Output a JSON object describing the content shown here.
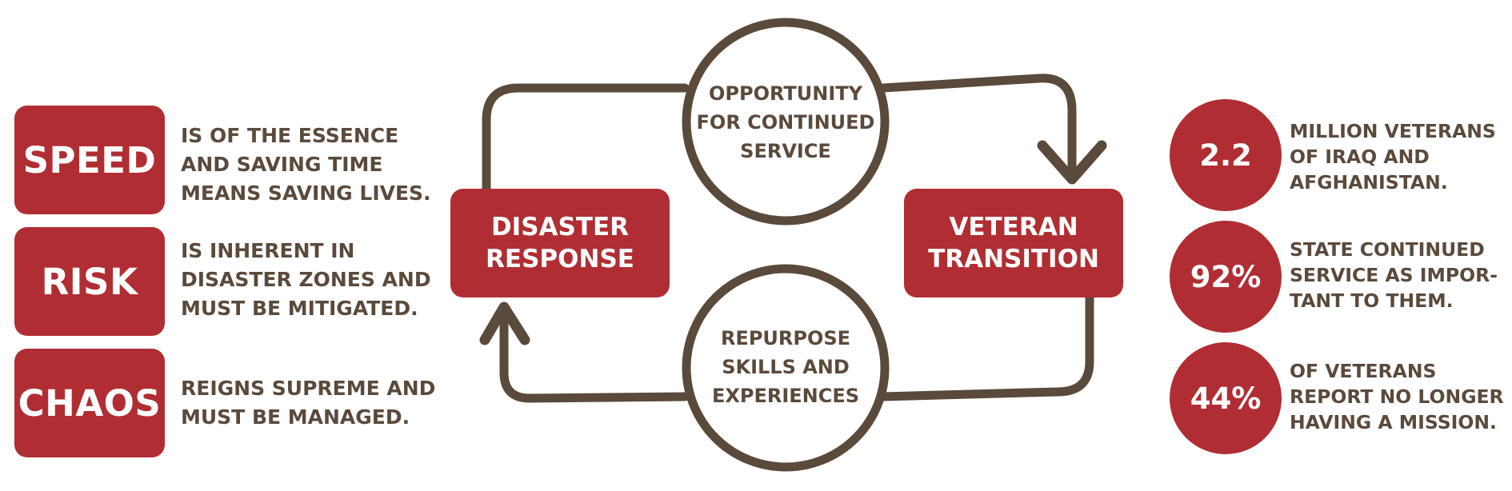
{
  "colors": {
    "accent": "#b02e33",
    "brown": "#5a4a3c",
    "background": "#ffffff"
  },
  "left_list": [
    {
      "word": "SPEED",
      "lines": [
        "IS OF THE ESSENCE",
        "AND SAVING TIME",
        "MEANS SAVING LIVES."
      ]
    },
    {
      "word": "RISK",
      "lines": [
        "IS INHERENT IN",
        "DISASTER ZONES AND",
        "MUST BE MITIGATED."
      ]
    },
    {
      "word": "CHAOS",
      "lines": [
        "REIGNS SUPREME AND",
        "MUST BE MANAGED."
      ]
    }
  ],
  "cycle": {
    "left_node": [
      "DISASTER",
      "RESPONSE"
    ],
    "right_node": [
      "VETERAN",
      "TRANSITION"
    ],
    "top_circle": [
      "OPPORTUNITY",
      "FOR CONTINUED",
      "SERVICE"
    ],
    "bottom_circle": [
      "REPURPOSE",
      "SKILLS AND",
      "EXPERIENCES"
    ]
  },
  "stats": [
    {
      "value": "2.2",
      "lines": [
        "MILLION VETERANS",
        "OF IRAQ AND",
        "AFGHANISTAN."
      ]
    },
    {
      "value": "92%",
      "lines": [
        "STATE CONTINUED",
        "SERVICE AS IMPOR-",
        "TANT TO THEM."
      ]
    },
    {
      "value": "44%",
      "lines": [
        "OF VETERANS",
        "REPORT NO LONGER",
        "HAVING A MISSION."
      ]
    }
  ]
}
